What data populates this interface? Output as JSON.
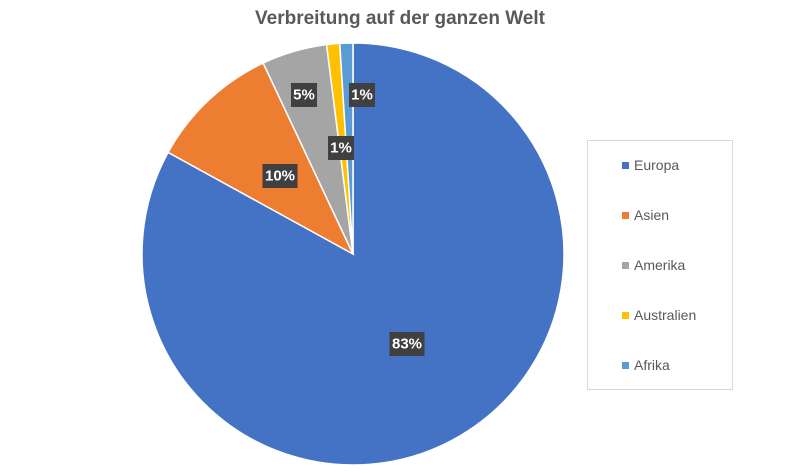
{
  "chart_data": {
    "type": "pie",
    "title": "Verbreitung auf der ganzen Welt",
    "slices": [
      {
        "name": "Europa",
        "value": 83,
        "label": "83%",
        "color": "#4472C4"
      },
      {
        "name": "Asien",
        "value": 10,
        "label": "10%",
        "color": "#ED7D31"
      },
      {
        "name": "Amerika",
        "value": 5,
        "label": "5%",
        "color": "#A5A5A5"
      },
      {
        "name": "Australien",
        "value": 1,
        "label": "1%",
        "color": "#FFC000"
      },
      {
        "name": "Afrika",
        "value": 1,
        "label": "1%",
        "color": "#5B9BD5"
      }
    ],
    "start_angle_deg": 0,
    "direction": "clockwise",
    "legend_position": "right",
    "data_label_style": "dark-box-white-text"
  }
}
